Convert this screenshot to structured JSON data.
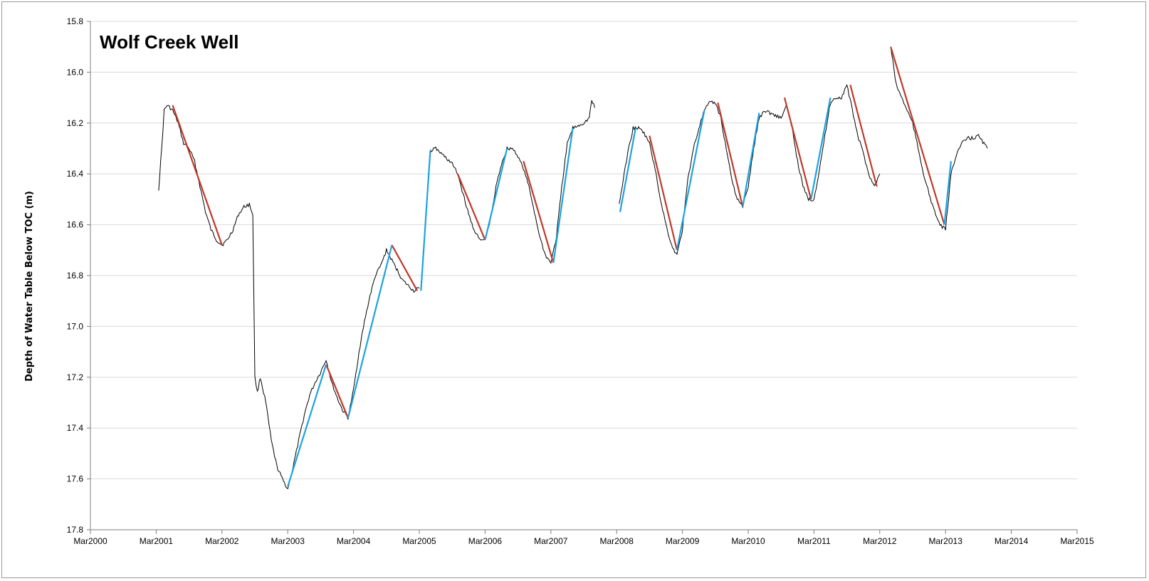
{
  "chart_data": {
    "type": "line",
    "title": "Wolf Creek Well",
    "ylabel": "Depth of Water Table Below TOC (m)",
    "xlabel": "",
    "y_inverted": true,
    "ylim": [
      15.8,
      17.8
    ],
    "xlim": [
      "2000-03",
      "2015-03"
    ],
    "y_ticks": [
      "15.8",
      "16.0",
      "16.2",
      "16.4",
      "16.6",
      "16.8",
      "17.0",
      "17.2",
      "17.4",
      "17.6",
      "17.8"
    ],
    "x_ticks": [
      "Mar2000",
      "Mar2001",
      "Mar2002",
      "Mar2003",
      "Mar2004",
      "Mar2005",
      "Mar2006",
      "Mar2007",
      "Mar2008",
      "Mar2009",
      "Mar2010",
      "Mar2011",
      "Mar2012",
      "Mar2013",
      "Mar2014",
      "Mar2015"
    ],
    "grid": "horizontal",
    "colors": {
      "observed": "#000000",
      "recession": "#c0392b",
      "recovery": "#1ca3e0",
      "grid": "#d9d9d9"
    },
    "series": [
      {
        "role": "observed",
        "segments": [
          [
            [
              "2001-03-15",
              16.46
            ],
            [
              "2001-04-01",
              16.3
            ],
            [
              "2001-04-15",
              16.15
            ],
            [
              "2001-05-01",
              16.13
            ],
            [
              "2001-06-01",
              16.15
            ],
            [
              "2001-07-01",
              16.2
            ],
            [
              "2001-08-01",
              16.28
            ],
            [
              "2001-09-01",
              16.3
            ],
            [
              "2001-10-01",
              16.35
            ],
            [
              "2001-11-01",
              16.45
            ],
            [
              "2001-12-01",
              16.55
            ],
            [
              "2002-01-01",
              16.62
            ],
            [
              "2002-02-01",
              16.66
            ],
            [
              "2002-03-01",
              16.68
            ],
            [
              "2002-04-01",
              16.66
            ],
            [
              "2002-05-01",
              16.62
            ],
            [
              "2002-06-01",
              16.56
            ],
            [
              "2002-07-01",
              16.53
            ],
            [
              "2002-08-01",
              16.52
            ],
            [
              "2002-08-20",
              16.56
            ],
            [
              "2002-09-01",
              17.2
            ],
            [
              "2002-09-15",
              17.26
            ],
            [
              "2002-10-01",
              17.2
            ],
            [
              "2002-11-01",
              17.3
            ],
            [
              "2002-12-01",
              17.45
            ],
            [
              "2003-01-01",
              17.55
            ],
            [
              "2003-02-01",
              17.6
            ],
            [
              "2003-03-01",
              17.64
            ],
            [
              "2003-04-01",
              17.55
            ],
            [
              "2003-05-01",
              17.45
            ],
            [
              "2003-06-01",
              17.35
            ],
            [
              "2003-07-01",
              17.27
            ],
            [
              "2003-08-01",
              17.22
            ],
            [
              "2003-09-01",
              17.18
            ],
            [
              "2003-10-01",
              17.13
            ],
            [
              "2003-11-01",
              17.22
            ],
            [
              "2003-12-01",
              17.28
            ],
            [
              "2004-01-01",
              17.33
            ],
            [
              "2004-02-01",
              17.36
            ],
            [
              "2004-03-01",
              17.25
            ],
            [
              "2004-04-01",
              17.1
            ],
            [
              "2004-05-01",
              16.98
            ],
            [
              "2004-06-01",
              16.88
            ],
            [
              "2004-07-01",
              16.8
            ],
            [
              "2004-08-01",
              16.76
            ],
            [
              "2004-09-01",
              16.7
            ],
            [
              "2004-10-01",
              16.74
            ],
            [
              "2004-11-01",
              16.78
            ],
            [
              "2004-12-01",
              16.82
            ],
            [
              "2005-01-01",
              16.84
            ],
            [
              "2005-02-01",
              16.86
            ],
            [
              "2005-03-01",
              16.85
            ]
          ],
          [
            [
              "2005-05-01",
              16.31
            ],
            [
              "2005-06-01",
              16.3
            ],
            [
              "2005-07-01",
              16.32
            ],
            [
              "2005-08-01",
              16.34
            ],
            [
              "2005-09-01",
              16.36
            ],
            [
              "2005-10-01",
              16.4
            ],
            [
              "2005-11-01",
              16.48
            ],
            [
              "2005-12-01",
              16.56
            ],
            [
              "2006-01-01",
              16.62
            ],
            [
              "2006-02-01",
              16.66
            ],
            [
              "2006-03-01",
              16.66
            ],
            [
              "2006-04-01",
              16.58
            ],
            [
              "2006-05-01",
              16.45
            ],
            [
              "2006-06-01",
              16.36
            ],
            [
              "2006-07-01",
              16.3
            ],
            [
              "2006-08-01",
              16.3
            ],
            [
              "2006-09-01",
              16.33
            ],
            [
              "2006-10-01",
              16.38
            ],
            [
              "2006-11-01",
              16.45
            ],
            [
              "2006-12-01",
              16.55
            ],
            [
              "2007-01-01",
              16.65
            ],
            [
              "2007-02-01",
              16.72
            ],
            [
              "2007-03-01",
              16.75
            ],
            [
              "2007-04-01",
              16.65
            ],
            [
              "2007-05-01",
              16.45
            ],
            [
              "2007-06-01",
              16.28
            ],
            [
              "2007-07-01",
              16.22
            ],
            [
              "2007-08-01",
              16.21
            ],
            [
              "2007-09-01",
              16.2
            ],
            [
              "2007-10-01",
              16.18
            ],
            [
              "2007-10-15",
              16.11
            ],
            [
              "2007-11-01",
              16.14
            ]
          ],
          [
            [
              "2008-03-15",
              16.52
            ],
            [
              "2008-04-01",
              16.45
            ],
            [
              "2008-05-01",
              16.32
            ],
            [
              "2008-06-01",
              16.22
            ],
            [
              "2008-07-01",
              16.22
            ],
            [
              "2008-08-01",
              16.24
            ],
            [
              "2008-09-01",
              16.28
            ],
            [
              "2008-10-01",
              16.38
            ],
            [
              "2008-11-01",
              16.5
            ],
            [
              "2008-12-01",
              16.6
            ],
            [
              "2009-01-01",
              16.68
            ],
            [
              "2009-02-01",
              16.72
            ],
            [
              "2009-03-01",
              16.62
            ],
            [
              "2009-04-01",
              16.42
            ],
            [
              "2009-05-01",
              16.3
            ],
            [
              "2009-06-01",
              16.22
            ],
            [
              "2009-07-01",
              16.15
            ],
            [
              "2009-08-01",
              16.12
            ],
            [
              "2009-09-01",
              16.12
            ],
            [
              "2009-10-01",
              16.18
            ],
            [
              "2009-11-01",
              16.3
            ],
            [
              "2009-12-01",
              16.42
            ],
            [
              "2010-01-01",
              16.5
            ],
            [
              "2010-02-01",
              16.53
            ],
            [
              "2010-03-01",
              16.45
            ],
            [
              "2010-04-01",
              16.3
            ],
            [
              "2010-05-01",
              16.18
            ],
            [
              "2010-06-01",
              16.15
            ],
            [
              "2010-07-01",
              16.16
            ],
            [
              "2010-08-01",
              16.17
            ],
            [
              "2010-09-01",
              16.18
            ],
            [
              "2010-10-01",
              16.13
            ],
            [
              "2010-11-01",
              16.22
            ],
            [
              "2010-12-01",
              16.35
            ],
            [
              "2011-01-01",
              16.45
            ],
            [
              "2011-02-01",
              16.5
            ],
            [
              "2011-03-01",
              16.5
            ],
            [
              "2011-04-01",
              16.38
            ],
            [
              "2011-05-01",
              16.25
            ],
            [
              "2011-06-01",
              16.12
            ],
            [
              "2011-07-01",
              16.1
            ],
            [
              "2011-08-01",
              16.1
            ],
            [
              "2011-09-01",
              16.05
            ],
            [
              "2011-10-01",
              16.15
            ],
            [
              "2011-11-01",
              16.25
            ],
            [
              "2011-12-01",
              16.32
            ],
            [
              "2012-01-01",
              16.4
            ],
            [
              "2012-02-01",
              16.45
            ],
            [
              "2012-03-01",
              16.4
            ]
          ],
          [
            [
              "2012-05-01",
              15.9
            ],
            [
              "2012-06-01",
              16.05
            ],
            [
              "2012-07-01",
              16.1
            ],
            [
              "2012-08-01",
              16.15
            ],
            [
              "2012-09-01",
              16.2
            ],
            [
              "2012-10-01",
              16.3
            ],
            [
              "2012-11-01",
              16.4
            ],
            [
              "2012-12-01",
              16.48
            ],
            [
              "2013-01-01",
              16.55
            ],
            [
              "2013-02-01",
              16.6
            ],
            [
              "2013-03-01",
              16.62
            ],
            [
              "2013-04-01",
              16.4
            ],
            [
              "2013-05-01",
              16.32
            ],
            [
              "2013-06-01",
              16.28
            ],
            [
              "2013-07-01",
              16.26
            ],
            [
              "2013-08-01",
              16.26
            ],
            [
              "2013-09-01",
              16.25
            ],
            [
              "2013-10-01",
              16.28
            ],
            [
              "2013-10-20",
              16.3
            ]
          ]
        ]
      },
      {
        "role": "recession",
        "lines": [
          [
            [
              "2001-06-01",
              16.13
            ],
            [
              "2002-03-01",
              16.68
            ]
          ],
          [
            [
              "2003-10-01",
              17.15
            ],
            [
              "2004-02-01",
              17.36
            ]
          ],
          [
            [
              "2004-10-01",
              16.68
            ],
            [
              "2005-02-20",
              16.86
            ]
          ],
          [
            [
              "2005-10-01",
              16.4
            ],
            [
              "2006-03-01",
              16.66
            ]
          ],
          [
            [
              "2006-10-01",
              16.35
            ],
            [
              "2007-03-15",
              16.75
            ]
          ],
          [
            [
              "2008-09-01",
              16.25
            ],
            [
              "2009-02-01",
              16.7
            ]
          ],
          [
            [
              "2009-09-15",
              16.12
            ],
            [
              "2010-02-01",
              16.53
            ]
          ],
          [
            [
              "2010-09-20",
              16.1
            ],
            [
              "2011-02-15",
              16.5
            ]
          ],
          [
            [
              "2011-09-20",
              16.05
            ],
            [
              "2012-02-15",
              16.45
            ]
          ],
          [
            [
              "2012-05-01",
              15.9
            ],
            [
              "2013-02-25",
              16.6
            ]
          ]
        ]
      },
      {
        "role": "recovery",
        "lines": [
          [
            [
              "2003-03-01",
              17.63
            ],
            [
              "2003-10-01",
              17.15
            ]
          ],
          [
            [
              "2004-02-01",
              17.36
            ],
            [
              "2004-10-01",
              16.68
            ]
          ],
          [
            [
              "2005-03-10",
              16.86
            ],
            [
              "2005-05-01",
              16.31
            ]
          ],
          [
            [
              "2006-03-01",
              16.66
            ],
            [
              "2006-07-01",
              16.3
            ]
          ],
          [
            [
              "2007-03-15",
              16.75
            ],
            [
              "2007-07-01",
              16.22
            ]
          ],
          [
            [
              "2008-03-20",
              16.55
            ],
            [
              "2008-06-15",
              16.22
            ]
          ],
          [
            [
              "2009-02-01",
              16.7
            ],
            [
              "2009-07-01",
              16.15
            ]
          ],
          [
            [
              "2010-02-01",
              16.53
            ],
            [
              "2010-05-01",
              16.16
            ]
          ],
          [
            [
              "2011-02-15",
              16.5
            ],
            [
              "2011-06-01",
              16.1
            ]
          ],
          [
            [
              "2013-02-25",
              16.6
            ],
            [
              "2013-04-01",
              16.35
            ]
          ]
        ]
      }
    ]
  }
}
